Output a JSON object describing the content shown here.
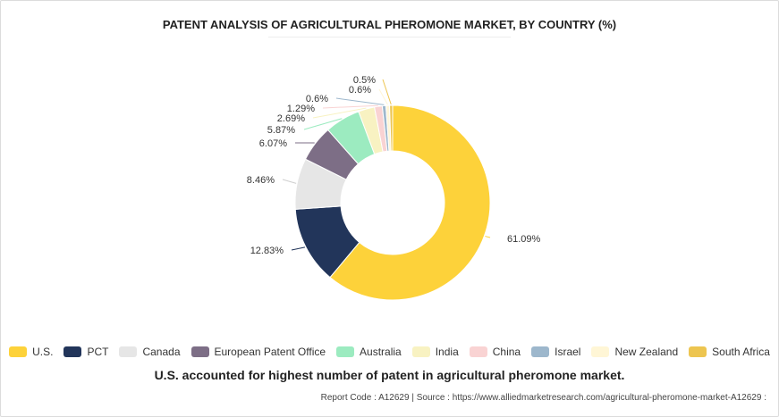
{
  "chart_data": {
    "type": "pie",
    "donut": true,
    "title": "PATENT ANALYSIS OF AGRICULTURAL PHEROMONE MARKET, BY COUNTRY (%)",
    "legend_position": "bottom",
    "slices": [
      {
        "name": "U.S.",
        "value": 61.09,
        "label": "61.09%",
        "color": "#FDD23A"
      },
      {
        "name": "PCT",
        "value": 12.83,
        "label": "12.83%",
        "color": "#22355A"
      },
      {
        "name": "Canada",
        "value": 8.46,
        "label": "8.46%",
        "color": "#E6E6E6"
      },
      {
        "name": "European Patent Office",
        "value": 6.07,
        "label": "6.07%",
        "color": "#7D6E86"
      },
      {
        "name": "Australia",
        "value": 5.87,
        "label": "5.87%",
        "color": "#9CEBC0"
      },
      {
        "name": "India",
        "value": 2.69,
        "label": "2.69%",
        "color": "#F8F2C2"
      },
      {
        "name": "China",
        "value": 1.29,
        "label": "1.29%",
        "color": "#F9D3D3"
      },
      {
        "name": "Israel",
        "value": 0.6,
        "label": "0.6%",
        "color": "#9DB7CC"
      },
      {
        "name": "New Zealand",
        "value": 0.6,
        "label": "0.6%",
        "color": "#FFF6D6"
      },
      {
        "name": "South Africa",
        "value": 0.5,
        "label": "0.5%",
        "color": "#EDC550"
      }
    ]
  },
  "caption": "U.S. accounted for highest number of patent in agricultural pheromone market.",
  "footer": "Report Code : A12629  |  Source : https://www.alliedmarketresearch.com/agricultural-pheromone-market-A12629 :"
}
